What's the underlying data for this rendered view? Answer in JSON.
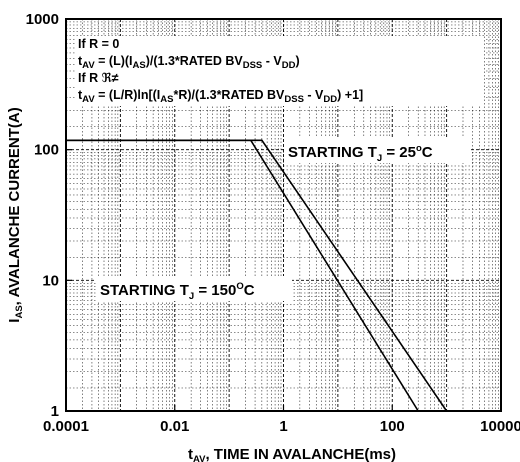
{
  "chart_data": {
    "type": "line",
    "x_scale": "log",
    "y_scale": "log",
    "xlim": [
      0.0001,
      10000
    ],
    "ylim": [
      1,
      1000
    ],
    "x_ticks": [
      {
        "value": 0.0001,
        "label": "0.0001"
      },
      {
        "value": 0.01,
        "label": "0.01"
      },
      {
        "value": 1,
        "label": "1"
      },
      {
        "value": 100,
        "label": "100"
      },
      {
        "value": 10000,
        "label": "10000"
      }
    ],
    "y_ticks": [
      {
        "value": 1,
        "label": "1"
      },
      {
        "value": 10,
        "label": "10"
      },
      {
        "value": 100,
        "label": "100"
      },
      {
        "value": 1000,
        "label": "1000"
      }
    ],
    "xlabel": {
      "main": "t",
      "sub": "AV",
      "rest": ", TIME IN AVALANCHE(ms)"
    },
    "ylabel": {
      "main": "I",
      "sub": "AS",
      "rest": ", AVALANCHE CURRENT(A)"
    },
    "grid": true,
    "series": [
      {
        "name": "STARTING TJ = 25°C",
        "x": [
          0.0001,
          0.4,
          1000
        ],
        "y": [
          118,
          118,
          1
        ]
      },
      {
        "name": "STARTING TJ = 150°C",
        "x": [
          0.0001,
          0.25,
          300
        ],
        "y": [
          118,
          118,
          1
        ]
      }
    ],
    "annotations": {
      "eq1": "If R = 0",
      "eq2": {
        "a": "t",
        "a_sub": "AV",
        "b": " = (L)(I",
        "b_sub": "AS",
        "c": ")/(1.3*RATED BV",
        "c_sub": "DSS",
        "d": " - V",
        "d_sub": "DD",
        "e": ")"
      },
      "eq3": "If R ℜ≠",
      "eq4": {
        "a": "t",
        "a_sub": "AV",
        "b": " = (L/R)ln[(I",
        "b_sub": "AS",
        "c": "*R)/(1.3*RATED BV",
        "c_sub": "DSS",
        "d": " - V",
        "d_sub": "DD",
        "e": ") +1]"
      },
      "label25": {
        "a": "STARTING T",
        "sub": "J",
        "b": " = 25",
        "sup": "o",
        "c": "C"
      },
      "label150": {
        "a": "STARTING T",
        "sub": "J",
        "b": " = 150",
        "sup": "O",
        "c": "C"
      }
    }
  }
}
